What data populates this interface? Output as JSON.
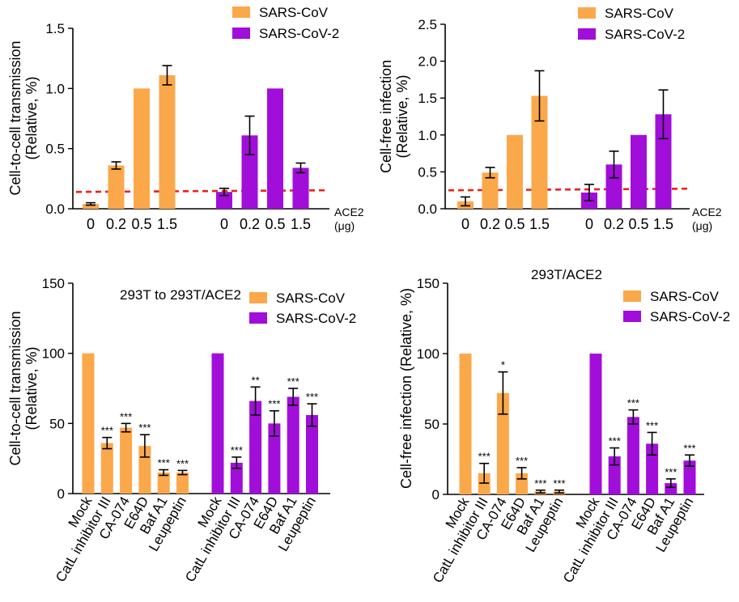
{
  "colors": {
    "sars_cov": "#fba84b",
    "sars_cov_2": "#a10ed9",
    "reference_line": "#e8221b"
  },
  "chart_data": [
    {
      "type": "bar",
      "ylabel": [
        "Cell-to-cell transmission",
        "(Relative, %)"
      ],
      "ylim": [
        0,
        1.5
      ],
      "yticks": [
        "0.0",
        "0.5",
        "1.0",
        "1.5"
      ],
      "categories": [
        "0",
        "0.2",
        "0.5",
        "1.5"
      ],
      "axis_note": [
        "ACE2",
        "(μg)"
      ],
      "reference_line": 0.14,
      "series": [
        {
          "name": "SARS-CoV",
          "values": [
            0.04,
            0.36,
            1.0,
            1.11
          ],
          "errors": [
            0.01,
            0.03,
            0,
            0.08
          ]
        },
        {
          "name": "SARS-CoV-2",
          "values": [
            0.14,
            0.61,
            1.0,
            0.34
          ],
          "errors": [
            0.03,
            0.16,
            0,
            0.04
          ]
        }
      ],
      "legend": "top-right"
    },
    {
      "type": "bar",
      "ylabel": [
        "Cell-free infection",
        "(Relative, %)"
      ],
      "ylim": [
        0,
        2.5
      ],
      "yticks": [
        "0.0",
        "0.5",
        "1.0",
        "1.5",
        "2.0",
        "2.5"
      ],
      "categories": [
        "0",
        "0.2",
        "0.5",
        "1.5"
      ],
      "axis_note": [
        "ACE2",
        "(μg)"
      ],
      "reference_line": 0.25,
      "series": [
        {
          "name": "SARS-CoV",
          "values": [
            0.1,
            0.49,
            1.0,
            1.53
          ],
          "errors": [
            0.06,
            0.07,
            0,
            0.34
          ]
        },
        {
          "name": "SARS-CoV-2",
          "values": [
            0.22,
            0.6,
            1.0,
            1.28
          ],
          "errors": [
            0.11,
            0.18,
            0,
            0.33
          ]
        }
      ],
      "legend": "top-right"
    },
    {
      "type": "bar",
      "title": "293T to 293T/ACE2",
      "ylabel": [
        "Cell-to-cell transmission",
        "(Relative, %)"
      ],
      "ylim": [
        0,
        150
      ],
      "yticks": [
        "0",
        "50",
        "100",
        "150"
      ],
      "categories": [
        "Mock",
        "CatL inhibitor III",
        "CA-074",
        "E64D",
        "Baf A1",
        "Leupeptin"
      ],
      "series": [
        {
          "name": "SARS-CoV",
          "values": [
            100,
            36,
            47,
            34,
            15,
            15
          ],
          "errors": [
            0,
            4,
            3,
            8,
            2,
            1.5
          ],
          "significance": [
            "",
            "***",
            "***",
            "***",
            "***",
            "***"
          ]
        },
        {
          "name": "SARS-CoV-2",
          "values": [
            100,
            22,
            66,
            50,
            69,
            56
          ],
          "errors": [
            0,
            4,
            10,
            9,
            6,
            8
          ],
          "significance": [
            "",
            "***",
            "**",
            "***",
            "***",
            "***"
          ]
        }
      ],
      "legend": "top-right"
    },
    {
      "type": "bar",
      "title": "293T/ACE2",
      "ylabel": [
        "Cell-free infection (Relative, %)"
      ],
      "ylim": [
        0,
        150
      ],
      "yticks": [
        "0",
        "50",
        "100",
        "150"
      ],
      "categories": [
        "Mock",
        "CatL inhibitor III",
        "CA-074",
        "E64D",
        "Baf A1",
        "Leupeptin"
      ],
      "series": [
        {
          "name": "SARS-CoV",
          "values": [
            100,
            15,
            72,
            15,
            2,
            2
          ],
          "errors": [
            0,
            7,
            15,
            4,
            1,
            1
          ],
          "significance": [
            "",
            "***",
            "*",
            "***",
            "***",
            "***"
          ]
        },
        {
          "name": "SARS-CoV-2",
          "values": [
            100,
            27,
            55,
            36,
            8,
            24
          ],
          "errors": [
            0,
            6,
            5,
            8,
            3,
            4
          ],
          "significance": [
            "",
            "***",
            "***",
            "***",
            "***",
            "***"
          ]
        }
      ],
      "legend": "top-right"
    }
  ]
}
